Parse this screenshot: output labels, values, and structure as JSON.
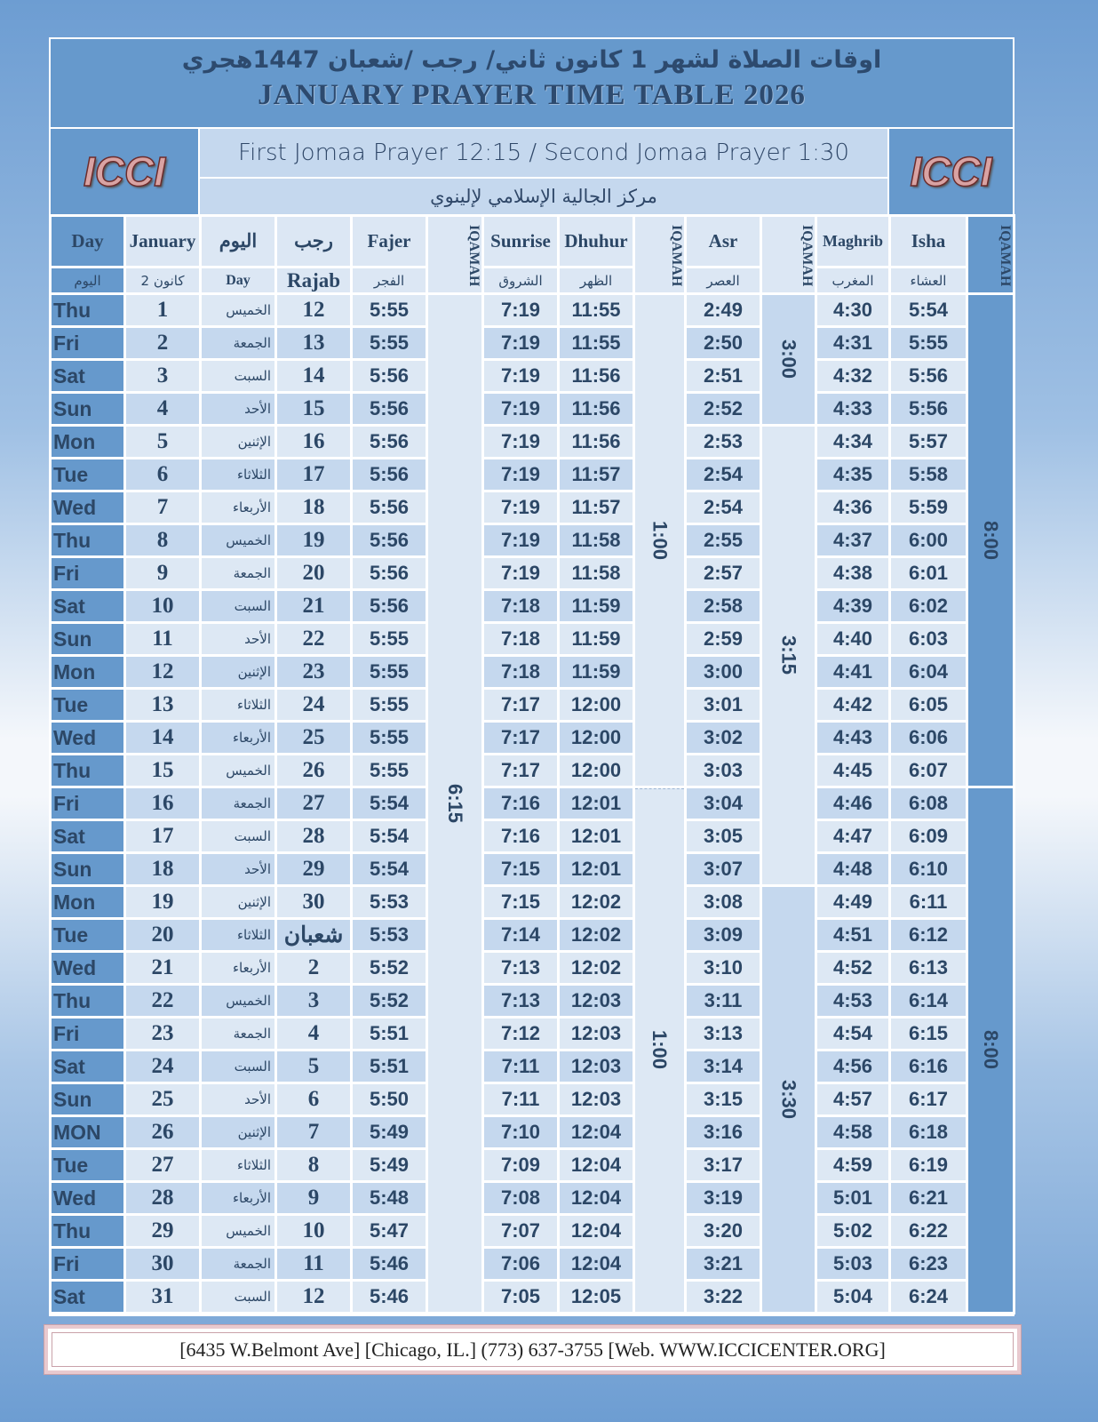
{
  "header": {
    "arabic_title": "اوقات الصلاة لشهر 1 كانون ثاني/ رجب /شعبان 1447هجري",
    "english_title": "JANUARY PRAYER TIME TABLE  2026",
    "logo_text": "ICCI",
    "jomaa": "First Jomaa Prayer 12:15 /  Second Jomaa Prayer 1:30",
    "center_name": "مركز الجالية الإسلامي لإلينوي"
  },
  "columns": {
    "day": "Day",
    "day_ar": "اليوم",
    "january": "January",
    "january_ar": "كانون 2",
    "weekday_ar": "اليوم",
    "weekday_en": "Day",
    "hijri_ar": "رجب",
    "hijri_en": "Rajab",
    "fajer": "Fajer",
    "fajer_ar": "الفجر",
    "iqamah": "IQAMAH",
    "sunrise": "Sunrise",
    "sunrise_ar": "الشروق",
    "dhuhur": "Dhuhur",
    "dhuhur_ar": "الظهر",
    "asr": "Asr",
    "asr_ar": "العصر",
    "maghrib": "Maghrib",
    "maghrib_ar": "المغرب",
    "isha": "Isha",
    "isha_ar": "العشاء"
  },
  "iqamah": {
    "fajr": "6:15",
    "dhuhr_1": "1:00",
    "dhuhr_2": "1:00",
    "asr_1": "3:00",
    "asr_2": "3:15",
    "asr_3": "3:30",
    "isha_1": "8:00",
    "isha_2": "8:00"
  },
  "rows": [
    [
      "Thu",
      "1",
      "الخميس",
      "12",
      "5:55",
      "7:19",
      "11:55",
      "2:49",
      "4:30",
      "5:54"
    ],
    [
      "Fri",
      "2",
      "الجمعة",
      "13",
      "5:55",
      "7:19",
      "11:55",
      "2:50",
      "4:31",
      "5:55"
    ],
    [
      "Sat",
      "3",
      "السبت",
      "14",
      "5:56",
      "7:19",
      "11:56",
      "2:51",
      "4:32",
      "5:56"
    ],
    [
      "Sun",
      "4",
      "الأحد",
      "15",
      "5:56",
      "7:19",
      "11:56",
      "2:52",
      "4:33",
      "5:56"
    ],
    [
      "Mon",
      "5",
      "الإثنين",
      "16",
      "5:56",
      "7:19",
      "11:56",
      "2:53",
      "4:34",
      "5:57"
    ],
    [
      "Tue",
      "6",
      "الثلاثاء",
      "17",
      "5:56",
      "7:19",
      "11:57",
      "2:54",
      "4:35",
      "5:58"
    ],
    [
      "Wed",
      "7",
      "الأربعاء",
      "18",
      "5:56",
      "7:19",
      "11:57",
      "2:54",
      "4:36",
      "5:59"
    ],
    [
      "Thu",
      "8",
      "الخميس",
      "19",
      "5:56",
      "7:19",
      "11:58",
      "2:55",
      "4:37",
      "6:00"
    ],
    [
      "Fri",
      "9",
      "الجمعة",
      "20",
      "5:56",
      "7:19",
      "11:58",
      "2:57",
      "4:38",
      "6:01"
    ],
    [
      "Sat",
      "10",
      "السبت",
      "21",
      "5:56",
      "7:18",
      "11:59",
      "2:58",
      "4:39",
      "6:02"
    ],
    [
      "Sun",
      "11",
      "الأحد",
      "22",
      "5:55",
      "7:18",
      "11:59",
      "2:59",
      "4:40",
      "6:03"
    ],
    [
      "Mon",
      "12",
      "الإثنين",
      "23",
      "5:55",
      "7:18",
      "11:59",
      "3:00",
      "4:41",
      "6:04"
    ],
    [
      "Tue",
      "13",
      "الثلاثاء",
      "24",
      "5:55",
      "7:17",
      "12:00",
      "3:01",
      "4:42",
      "6:05"
    ],
    [
      "Wed",
      "14",
      "الأربعاء",
      "25",
      "5:55",
      "7:17",
      "12:00",
      "3:02",
      "4:43",
      "6:06"
    ],
    [
      "Thu",
      "15",
      "الخميس",
      "26",
      "5:55",
      "7:17",
      "12:00",
      "3:03",
      "4:45",
      "6:07"
    ],
    [
      "Fri",
      "16",
      "الجمعة",
      "27",
      "5:54",
      "7:16",
      "12:01",
      "3:04",
      "4:46",
      "6:08"
    ],
    [
      "Sat",
      "17",
      "السبت",
      "28",
      "5:54",
      "7:16",
      "12:01",
      "3:05",
      "4:47",
      "6:09"
    ],
    [
      "Sun",
      "18",
      "الأحد",
      "29",
      "5:54",
      "7:15",
      "12:01",
      "3:07",
      "4:48",
      "6:10"
    ],
    [
      "Mon",
      "19",
      "الإثنين",
      "30",
      "5:53",
      "7:15",
      "12:02",
      "3:08",
      "4:49",
      "6:11"
    ],
    [
      "Tue",
      "20",
      "الثلاثاء",
      "شعبان",
      "5:53",
      "7:14",
      "12:02",
      "3:09",
      "4:51",
      "6:12"
    ],
    [
      "Wed",
      "21",
      "الأربعاء",
      "2",
      "5:52",
      "7:13",
      "12:02",
      "3:10",
      "4:52",
      "6:13"
    ],
    [
      "Thu",
      "22",
      "الخميس",
      "3",
      "5:52",
      "7:13",
      "12:03",
      "3:11",
      "4:53",
      "6:14"
    ],
    [
      "Fri",
      "23",
      "الجمعة",
      "4",
      "5:51",
      "7:12",
      "12:03",
      "3:13",
      "4:54",
      "6:15"
    ],
    [
      "Sat",
      "24",
      "السبت",
      "5",
      "5:51",
      "7:11",
      "12:03",
      "3:14",
      "4:56",
      "6:16"
    ],
    [
      "Sun",
      "25",
      "الأحد",
      "6",
      "5:50",
      "7:11",
      "12:03",
      "3:15",
      "4:57",
      "6:17"
    ],
    [
      "MON",
      "26",
      "الإثنين",
      "7",
      "5:49",
      "7:10",
      "12:04",
      "3:16",
      "4:58",
      "6:18"
    ],
    [
      "Tue",
      "27",
      "الثلاثاء",
      "8",
      "5:49",
      "7:09",
      "12:04",
      "3:17",
      "4:59",
      "6:19"
    ],
    [
      "Wed",
      "28",
      "الأربعاء",
      "9",
      "5:48",
      "7:08",
      "12:04",
      "3:19",
      "5:01",
      "6:21"
    ],
    [
      "Thu",
      "29",
      "الخميس",
      "10",
      "5:47",
      "7:07",
      "12:04",
      "3:20",
      "5:02",
      "6:22"
    ],
    [
      "Fri",
      "30",
      "الجمعة",
      "11",
      "5:46",
      "7:06",
      "12:04",
      "3:21",
      "5:03",
      "6:23"
    ],
    [
      "Sat",
      "31",
      "السبت",
      "12",
      "5:46",
      "7:05",
      "12:05",
      "3:22",
      "5:04",
      "6:24"
    ]
  ],
  "footer": "[6435 W.Belmont Ave]  [Chicago, IL.] (773) 637-3755 [Web. WWW.ICCICENTER.ORG]",
  "colors": {
    "header_blue": "#6699cc",
    "cell_dark": "#c5d8ee",
    "cell_light": "#dde8f4",
    "text": "#2c4766"
  }
}
